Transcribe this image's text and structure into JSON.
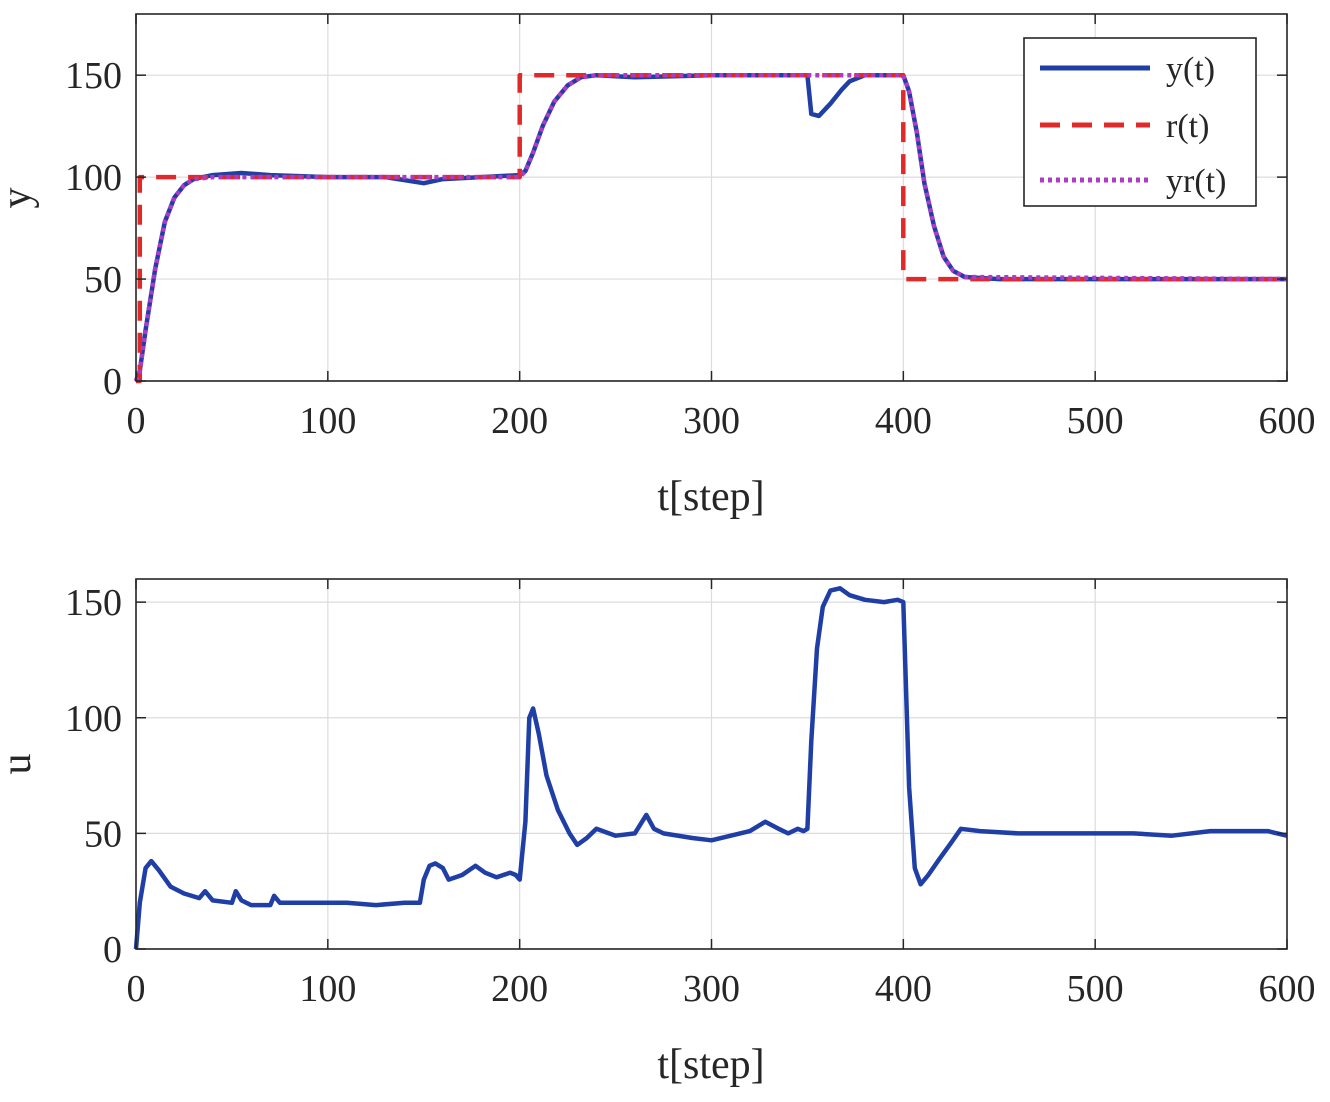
{
  "chart_data": [
    {
      "type": "line",
      "xlabel": "t[step]",
      "ylabel": "y",
      "xlim": [
        0,
        600
      ],
      "ylim": [
        0,
        180
      ],
      "xticks": [
        0,
        100,
        200,
        300,
        400,
        500,
        600
      ],
      "yticks": [
        0,
        50,
        100,
        150
      ],
      "grid": true,
      "legend_position": "top-right",
      "series": [
        {
          "name": "y(t)",
          "style": "solid",
          "color": "#1f3fa6",
          "x": [
            0,
            2,
            5,
            10,
            15,
            20,
            25,
            30,
            40,
            55,
            70,
            100,
            130,
            150,
            160,
            180,
            200,
            203,
            207,
            212,
            218,
            225,
            232,
            240,
            260,
            300,
            340,
            350,
            352,
            356,
            362,
            368,
            372,
            380,
            400,
            403,
            407,
            411,
            416,
            421,
            426,
            432,
            450,
            500,
            550,
            600
          ],
          "y": [
            0,
            5,
            25,
            55,
            78,
            90,
            96,
            99,
            101,
            102,
            101,
            100,
            100,
            97,
            99,
            100,
            101,
            103,
            112,
            125,
            137,
            145,
            149,
            150,
            149,
            150,
            150,
            150,
            131,
            130,
            136,
            143,
            147,
            150,
            150,
            142,
            122,
            97,
            76,
            61,
            54,
            51,
            50,
            50,
            50,
            50
          ]
        },
        {
          "name": "r(t)",
          "style": "dashed",
          "color": "#e02a2a",
          "x": [
            0,
            2,
            2,
            200,
            200,
            400,
            400,
            600
          ],
          "y": [
            0,
            0,
            100,
            100,
            150,
            150,
            50,
            50
          ]
        },
        {
          "name": "yr(t)",
          "style": "dotted",
          "color": "#b03ac8",
          "x": [
            0,
            2,
            5,
            10,
            15,
            20,
            25,
            30,
            40,
            100,
            200,
            203,
            207,
            212,
            218,
            225,
            232,
            240,
            400,
            403,
            407,
            411,
            416,
            421,
            426,
            432,
            600
          ],
          "y": [
            0,
            5,
            25,
            55,
            78,
            90,
            96,
            99,
            100,
            100,
            100,
            103,
            112,
            125,
            137,
            145,
            149,
            150,
            150,
            142,
            122,
            97,
            76,
            61,
            54,
            51,
            50
          ]
        }
      ]
    },
    {
      "type": "line",
      "xlabel": "t[step]",
      "ylabel": "u",
      "xlim": [
        0,
        600
      ],
      "ylim": [
        0,
        160
      ],
      "xticks": [
        0,
        100,
        200,
        300,
        400,
        500,
        600
      ],
      "yticks": [
        0,
        50,
        100,
        150
      ],
      "grid": true,
      "series": [
        {
          "color": "#1f3fa6",
          "style": "solid",
          "x": [
            0,
            2,
            5,
            8,
            12,
            18,
            25,
            33,
            36,
            40,
            50,
            52,
            55,
            60,
            70,
            72,
            75,
            90,
            110,
            125,
            140,
            148,
            150,
            153,
            156,
            160,
            163,
            170,
            177,
            182,
            188,
            195,
            198,
            200,
            203,
            205,
            207,
            210,
            214,
            220,
            226,
            230,
            235,
            240,
            250,
            260,
            266,
            270,
            275,
            290,
            300,
            310,
            320,
            328,
            335,
            340,
            345,
            348,
            350,
            352,
            355,
            358,
            362,
            367,
            372,
            380,
            390,
            397,
            400,
            403,
            406,
            409,
            413,
            418,
            425,
            430,
            440,
            460,
            480,
            500,
            520,
            540,
            560,
            580,
            590,
            600
          ],
          "y": [
            0,
            20,
            35,
            38,
            34,
            27,
            24,
            22,
            25,
            21,
            20,
            25,
            21,
            19,
            19,
            23,
            20,
            20,
            20,
            19,
            20,
            20,
            30,
            36,
            37,
            35,
            30,
            32,
            36,
            33,
            31,
            33,
            32,
            30,
            55,
            100,
            104,
            93,
            75,
            60,
            50,
            45,
            48,
            52,
            49,
            50,
            58,
            52,
            50,
            48,
            47,
            49,
            51,
            55,
            52,
            50,
            52,
            51,
            52,
            90,
            130,
            148,
            155,
            156,
            153,
            151,
            150,
            151,
            150,
            70,
            35,
            28,
            32,
            38,
            46,
            52,
            51,
            50,
            50,
            50,
            50,
            49,
            51,
            51,
            51,
            49
          ]
        }
      ]
    }
  ]
}
